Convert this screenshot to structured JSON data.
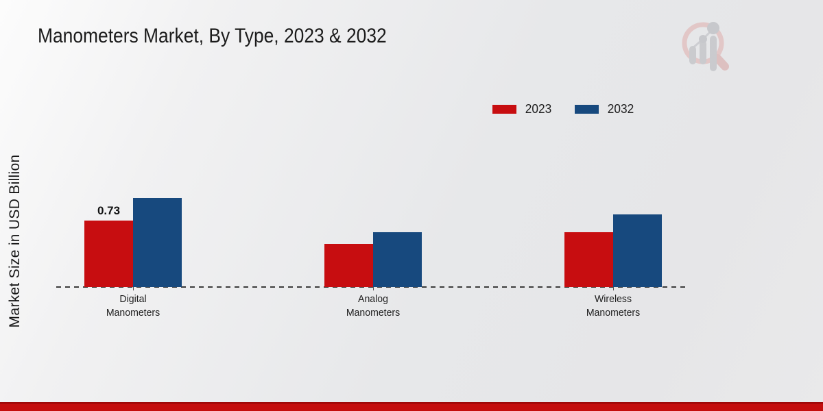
{
  "title": "Manometers Market, By Type, 2023 & 2032",
  "watermark": {
    "name": "market-research-future-logo",
    "ring_color": "#e2c4c4",
    "handle_color": "#ddbcbc",
    "bars_color": "#c7c8cc",
    "dots_color": "#c4c5c9"
  },
  "footer": {
    "band_color": "#c40d0d"
  },
  "chart_data": {
    "type": "bar",
    "title": "Manometers Market, By Type, 2023 & 2032",
    "ylabel": "Market Size in USD Billion",
    "xlabel": "",
    "categories": [
      "Digital\nManometers",
      "Analog\nManometers",
      "Wireless\nManometers"
    ],
    "series": [
      {
        "name": "2023",
        "color": "#c70d10",
        "values": [
          0.73,
          0.47,
          0.6
        ],
        "labels": [
          "0.73",
          "",
          ""
        ]
      },
      {
        "name": "2032",
        "color": "#17497e",
        "values": [
          0.98,
          0.6,
          0.8
        ],
        "labels": [
          "",
          "",
          ""
        ]
      }
    ],
    "ylim": [
      0,
      1.3
    ],
    "grid": false,
    "legend_position": "top-right",
    "axis_line_style": "dashed",
    "axis_line_color": "#3b3b3b"
  }
}
